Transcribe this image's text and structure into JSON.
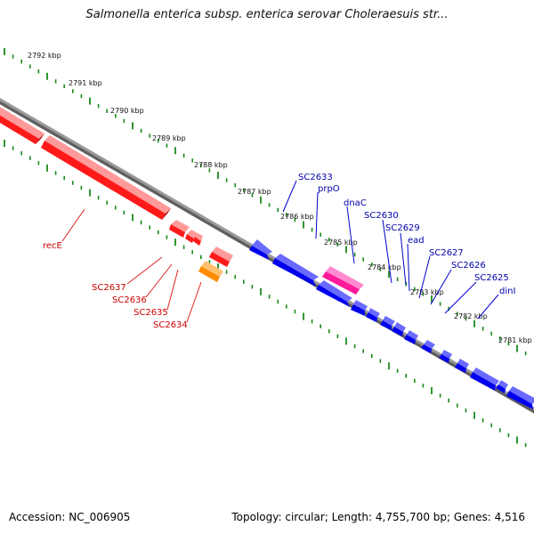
{
  "title": "Salmonella enterica subsp. enterica serovar Choleraesuis str...",
  "footer": {
    "accession": "Accession: NC_006905",
    "topology": "Topology: circular; Length: 4,755,700 bp; Genes: 4,516"
  },
  "colors": {
    "background": "#ffffff",
    "backbone": "#8a8a8a",
    "ruler_ticks": "#1a8a1a",
    "reverse_strand_genes": "#ff0000",
    "forward_strand_genes": "#0000ff",
    "highlighted_gene": "#ff2aa0",
    "other_gene": "#ff8c00",
    "reverse_labels": "#cc0000",
    "forward_labels": "#0000aa"
  },
  "ruler": {
    "unit": "kbp",
    "labels": [
      "2792 kbp",
      "2791 kbp",
      "2790 kbp",
      "2789 kbp",
      "2788 kbp",
      "2787 kbp",
      "2786 kbp",
      "2785 kbp",
      "2784 kbp",
      "2783 kbp",
      "2782 kbp",
      "2781 kbp"
    ]
  },
  "reverse_strand_genes": {
    "labels": [
      "recE",
      "SC2637",
      "SC2636",
      "SC2635",
      "SC2634"
    ]
  },
  "forward_strand_genes": {
    "labels": [
      "SC2633",
      "prpO",
      "dnaC",
      "SC2630",
      "SC2629",
      "ead",
      "SC2627",
      "SC2626",
      "SC2625",
      "dinI"
    ]
  }
}
